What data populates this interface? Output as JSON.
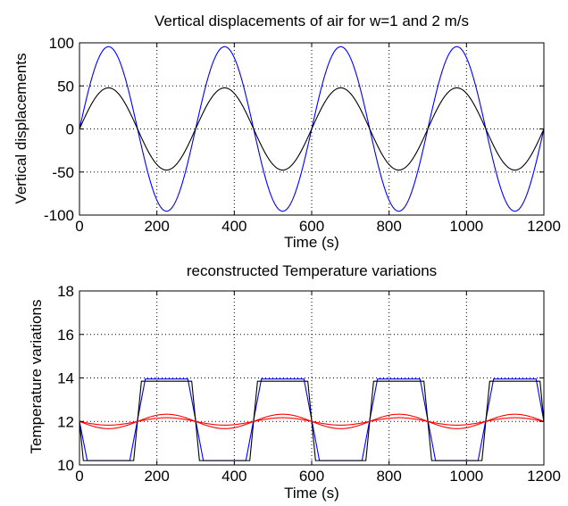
{
  "chart_data": [
    {
      "type": "line",
      "title": "Vertical displacements of air for w=1 and 2 m/s",
      "xlabel": "Time (s)",
      "ylabel": "Vertical displacements",
      "xlim": [
        0,
        1200
      ],
      "ylim": [
        -100,
        100
      ],
      "xticks": [
        0,
        200,
        400,
        600,
        800,
        1000,
        1200
      ],
      "yticks": [
        -100,
        -50,
        0,
        50,
        100
      ],
      "grid": true,
      "series": [
        {
          "color": "#0000ff",
          "model": "sine",
          "amplitude": 95.5,
          "period_s": 300,
          "x": [
            0,
            75,
            150,
            225,
            300,
            375,
            450,
            525,
            600,
            675,
            750,
            825,
            900,
            975,
            1050,
            1125,
            1200
          ],
          "values": [
            0,
            95.5,
            0,
            -95.5,
            0,
            95.5,
            0,
            -95.5,
            0,
            95.5,
            0,
            -95.5,
            0,
            95.5,
            0,
            -95.5,
            0
          ]
        },
        {
          "color": "#000000",
          "model": "sine",
          "amplitude": 47.7,
          "period_s": 300,
          "x": [
            0,
            75,
            150,
            225,
            300,
            375,
            450,
            525,
            600,
            675,
            750,
            825,
            900,
            975,
            1050,
            1125,
            1200
          ],
          "values": [
            0,
            47.7,
            0,
            -47.7,
            0,
            47.7,
            0,
            -47.7,
            0,
            47.7,
            0,
            -47.7,
            0,
            47.7,
            0,
            -47.7,
            0
          ]
        }
      ]
    },
    {
      "type": "line",
      "title": "reconstructed Temperature variations",
      "xlabel": "Time (s)",
      "ylabel": "Temperature variations",
      "xlim": [
        0,
        1200
      ],
      "ylim": [
        10,
        18
      ],
      "xticks": [
        0,
        200,
        400,
        600,
        800,
        1000,
        1200
      ],
      "yticks": [
        10,
        12,
        14,
        16,
        18
      ],
      "grid": true,
      "series": [
        {
          "color": "#0000ff",
          "model": "trapezoid",
          "x": [
            0,
            20,
            30,
            120,
            130,
            170,
            180,
            270,
            280,
            320,
            330,
            420,
            430,
            470,
            480,
            570,
            580,
            620,
            630,
            720,
            730,
            770,
            780,
            870,
            880,
            920,
            930,
            1020,
            1030,
            1070,
            1080,
            1170,
            1180,
            1200
          ],
          "values": [
            12.0,
            10.2,
            10.2,
            10.2,
            10.2,
            13.95,
            13.95,
            13.95,
            13.95,
            10.2,
            10.2,
            10.2,
            10.2,
            13.95,
            13.95,
            13.95,
            13.95,
            10.2,
            10.2,
            10.2,
            10.2,
            13.95,
            13.95,
            13.95,
            13.95,
            10.2,
            10.2,
            10.2,
            10.2,
            13.95,
            13.95,
            13.95,
            13.95,
            12.0
          ]
        },
        {
          "color": "#000000",
          "model": "trapezoid",
          "x": [
            0,
            10,
            35,
            115,
            140,
            160,
            185,
            265,
            290,
            310,
            335,
            415,
            440,
            460,
            485,
            565,
            590,
            610,
            635,
            715,
            740,
            760,
            785,
            865,
            890,
            910,
            935,
            1015,
            1040,
            1060,
            1085,
            1165,
            1190,
            1200
          ],
          "values": [
            12.0,
            10.2,
            10.2,
            10.2,
            10.2,
            13.85,
            13.85,
            13.85,
            13.85,
            10.2,
            10.2,
            10.2,
            10.2,
            13.85,
            13.85,
            13.85,
            13.85,
            10.2,
            10.2,
            10.2,
            10.2,
            13.85,
            13.85,
            13.85,
            13.85,
            10.2,
            10.2,
            10.2,
            10.2,
            13.85,
            13.85,
            13.85,
            13.85,
            12.0
          ]
        },
        {
          "color": "#ff0000",
          "model": "sine",
          "center": 12.0,
          "amplitude": 0.33,
          "period_s": 300,
          "peak_s": 225,
          "x": [
            0,
            75,
            150,
            225,
            300,
            375,
            450,
            525,
            600,
            675,
            750,
            825,
            900,
            975,
            1050,
            1125,
            1200
          ],
          "values": [
            12.0,
            11.67,
            12.0,
            12.33,
            12.0,
            11.67,
            12.0,
            12.33,
            12.0,
            11.67,
            12.0,
            12.33,
            12.0,
            11.67,
            12.0,
            12.33,
            12.0
          ]
        },
        {
          "color": "#ff0000",
          "model": "sine",
          "center": 12.0,
          "amplitude": 0.17,
          "period_s": 300,
          "peak_s": 225,
          "x": [
            0,
            75,
            150,
            225,
            300,
            375,
            450,
            525,
            600,
            675,
            750,
            825,
            900,
            975,
            1050,
            1125,
            1200
          ],
          "values": [
            12.0,
            11.83,
            12.0,
            12.17,
            12.0,
            11.83,
            12.0,
            12.17,
            12.0,
            11.83,
            12.0,
            12.17,
            12.0,
            11.83,
            12.0,
            12.17,
            12.0
          ]
        }
      ]
    }
  ]
}
